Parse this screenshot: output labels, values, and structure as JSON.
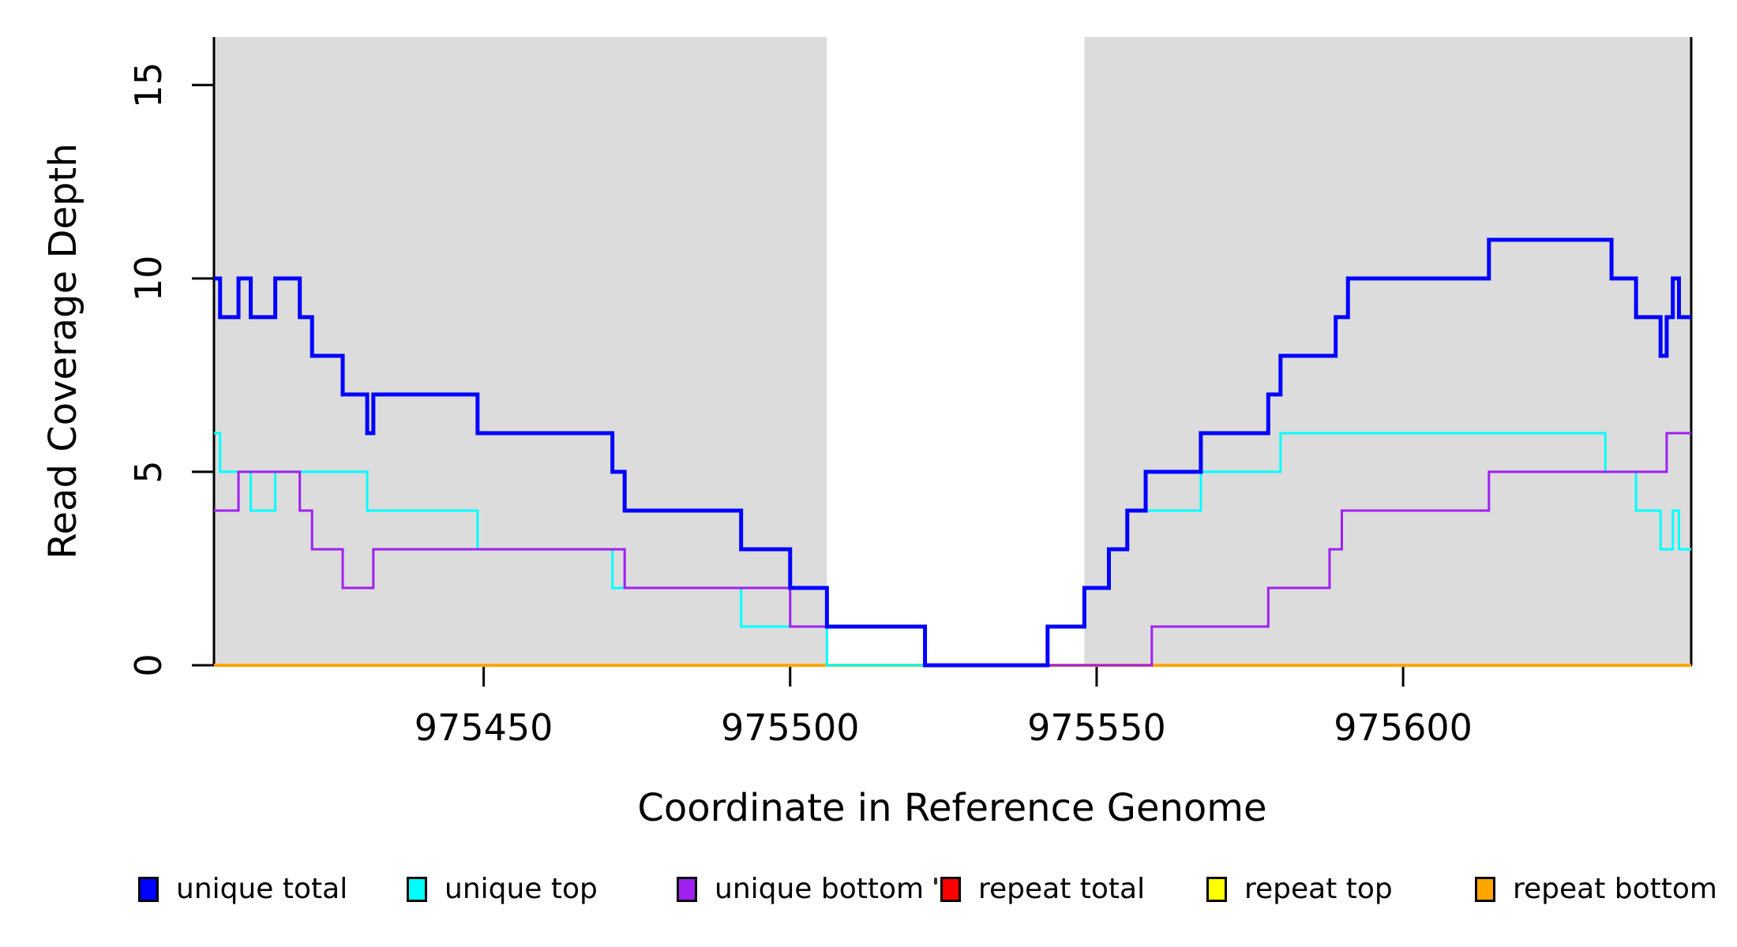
{
  "figure": {
    "xlabel": "Coordinate in Reference Genome",
    "ylabel": "Read Coverage Depth",
    "background_color": "#FFFFFF",
    "shading_color": "#DCDCDC",
    "axis_color": "#000000",
    "legend_artifact": "."
  },
  "chart_data": {
    "type": "line",
    "style": "step-after",
    "title": "",
    "xlabel": "Coordinate in Reference Genome",
    "ylabel": "Read Coverage Depth",
    "xlim": [
      975406,
      975647
    ],
    "ylim": [
      0,
      16.24
    ],
    "x_ticks": [
      975450,
      975500,
      975550,
      975600
    ],
    "x_tick_labels": [
      "975450",
      "975500",
      "975550",
      "975600"
    ],
    "y_ticks": [
      0,
      5,
      10,
      15
    ],
    "y_tick_labels": [
      "0",
      "5",
      "10",
      "15"
    ],
    "grid": false,
    "legend_position": "bottom",
    "shaded_regions": [
      {
        "x0": 975406,
        "x1": 975506,
        "color": "#DCDCDC",
        "note": "left aligned-coverage block"
      },
      {
        "x0": 975548,
        "x1": 975647,
        "color": "#DCDCDC",
        "note": "right aligned-coverage block"
      }
    ],
    "series": [
      {
        "name": "repeat total",
        "color": "#FF0000",
        "width": 4,
        "points": [
          [
            975406,
            0
          ]
        ]
      },
      {
        "name": "repeat top",
        "color": "#FFFF00",
        "width": 4,
        "points": [
          [
            975406,
            0
          ]
        ]
      },
      {
        "name": "repeat bottom",
        "color": "#FFA500",
        "width": 4,
        "points": [
          [
            975406,
            0
          ]
        ]
      },
      {
        "name": "unique top",
        "color": "#00FFFF",
        "width": 3,
        "points": [
          [
            975406,
            6
          ],
          [
            975407,
            5
          ],
          [
            975412,
            4
          ],
          [
            975416,
            5
          ],
          [
            975431,
            4
          ],
          [
            975449,
            3
          ],
          [
            975471,
            2
          ],
          [
            975492,
            1
          ],
          [
            975506,
            0
          ],
          [
            975542,
            1
          ],
          [
            975548,
            2
          ],
          [
            975552,
            3
          ],
          [
            975555,
            4
          ],
          [
            975567,
            5
          ],
          [
            975580,
            6
          ],
          [
            975633,
            5
          ],
          [
            975638,
            4
          ],
          [
            975642,
            3
          ],
          [
            975644,
            4
          ],
          [
            975645,
            3
          ]
        ]
      },
      {
        "name": "unique bottom",
        "color": "#A020F0",
        "width": 3,
        "points": [
          [
            975406,
            4
          ],
          [
            975410,
            5
          ],
          [
            975420,
            4
          ],
          [
            975422,
            3
          ],
          [
            975427,
            2
          ],
          [
            975432,
            3
          ],
          [
            975473,
            2
          ],
          [
            975500,
            1
          ],
          [
            975522,
            0
          ],
          [
            975559,
            1
          ],
          [
            975578,
            2
          ],
          [
            975588,
            3
          ],
          [
            975590,
            4
          ],
          [
            975614,
            5
          ],
          [
            975643,
            6
          ]
        ]
      },
      {
        "name": "unique total",
        "color": "#0000FF",
        "width": 5,
        "points": [
          [
            975406,
            10
          ],
          [
            975407,
            9
          ],
          [
            975410,
            10
          ],
          [
            975412,
            9
          ],
          [
            975416,
            10
          ],
          [
            975420,
            9
          ],
          [
            975422,
            8
          ],
          [
            975427,
            7
          ],
          [
            975431,
            6
          ],
          [
            975432,
            7
          ],
          [
            975449,
            6
          ],
          [
            975471,
            5
          ],
          [
            975473,
            4
          ],
          [
            975492,
            3
          ],
          [
            975500,
            2
          ],
          [
            975506,
            1
          ],
          [
            975522,
            0
          ],
          [
            975542,
            1
          ],
          [
            975548,
            2
          ],
          [
            975552,
            3
          ],
          [
            975555,
            4
          ],
          [
            975558,
            5
          ],
          [
            975567,
            6
          ],
          [
            975578,
            7
          ],
          [
            975580,
            8
          ],
          [
            975589,
            9
          ],
          [
            975591,
            10
          ],
          [
            975614,
            11
          ],
          [
            975634,
            10
          ],
          [
            975638,
            9
          ],
          [
            975642,
            8
          ],
          [
            975643,
            9
          ],
          [
            975644,
            10
          ],
          [
            975645,
            9
          ]
        ]
      }
    ]
  },
  "legend": {
    "items": [
      {
        "label": "unique total",
        "color": "#0000FF"
      },
      {
        "label": "unique top",
        "color": "#00FFFF"
      },
      {
        "label": "unique bottom",
        "color": "#A020F0"
      },
      {
        "label": "repeat total",
        "color": "#FF0000"
      },
      {
        "label": "repeat top",
        "color": "#FFFF00"
      },
      {
        "label": "repeat bottom",
        "color": "#FFA500"
      }
    ]
  }
}
